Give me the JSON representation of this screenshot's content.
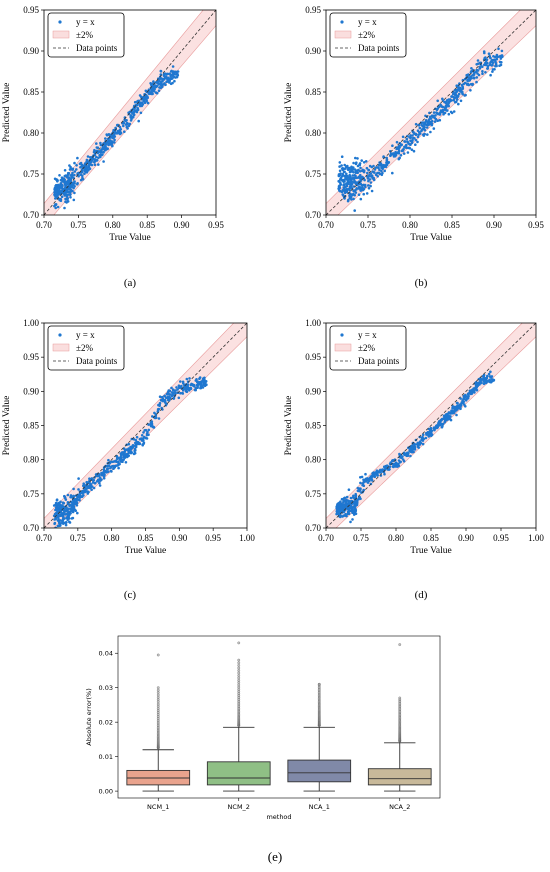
{
  "chart_data": [
    {
      "id": "a",
      "type": "scatter",
      "panel_label": "(a)",
      "xlabel": "True Value",
      "ylabel": "Predicted Value",
      "xlim": [
        0.7,
        0.95
      ],
      "ylim": [
        0.7,
        0.95
      ],
      "xticks": [
        "0.70",
        "0.75",
        "0.80",
        "0.85",
        "0.90",
        "0.95"
      ],
      "yticks": [
        "0.70",
        "0.75",
        "0.80",
        "0.85",
        "0.90",
        "0.95"
      ],
      "legend": {
        "position": "top-left",
        "entries": [
          "y = x",
          "±2%",
          "Data points"
        ]
      },
      "band_pct": 2,
      "colors": {
        "points": "#1f77d0",
        "band": "#f7c8c8",
        "band_edge": "#e89a9a",
        "identity": "#333333"
      },
      "trend": [
        [
          0.715,
          0.727
        ],
        [
          0.73,
          0.733
        ],
        [
          0.75,
          0.748
        ],
        [
          0.78,
          0.775
        ],
        [
          0.82,
          0.815
        ],
        [
          0.85,
          0.847
        ],
        [
          0.87,
          0.864
        ],
        [
          0.895,
          0.872
        ]
      ],
      "spread": 0.008
    },
    {
      "id": "b",
      "type": "scatter",
      "panel_label": "(b)",
      "xlabel": "True Value",
      "ylabel": "Predicted Value",
      "xlim": [
        0.7,
        0.95
      ],
      "ylim": [
        0.7,
        0.95
      ],
      "xticks": [
        "0.70",
        "0.75",
        "0.80",
        "0.85",
        "0.90",
        "0.95"
      ],
      "yticks": [
        "0.70",
        "0.75",
        "0.80",
        "0.85",
        "0.90",
        "0.95"
      ],
      "legend": {
        "position": "top-left",
        "entries": [
          "y = x",
          "±2%",
          "Data points"
        ]
      },
      "band_pct": 2,
      "colors": {
        "points": "#1f77d0",
        "band": "#f7c8c8",
        "band_edge": "#e89a9a",
        "identity": "#333333"
      },
      "trend": [
        [
          0.715,
          0.745
        ],
        [
          0.73,
          0.74
        ],
        [
          0.745,
          0.742
        ],
        [
          0.76,
          0.752
        ],
        [
          0.8,
          0.79
        ],
        [
          0.85,
          0.84
        ],
        [
          0.88,
          0.878
        ],
        [
          0.91,
          0.892
        ]
      ],
      "spread": 0.01
    },
    {
      "id": "c",
      "type": "scatter",
      "panel_label": "(c)",
      "xlabel": "True Value",
      "ylabel": "Predicted Value",
      "xlim": [
        0.7,
        1.0
      ],
      "ylim": [
        0.7,
        1.0
      ],
      "xticks": [
        "0.70",
        "0.75",
        "0.80",
        "0.85",
        "0.90",
        "0.95",
        "1.00"
      ],
      "yticks": [
        "0.70",
        "0.75",
        "0.80",
        "0.85",
        "0.90",
        "0.95",
        "1.00"
      ],
      "legend": {
        "position": "top-left",
        "entries": [
          "y = x",
          "±2%",
          "Data points"
        ]
      },
      "band_pct": 2,
      "colors": {
        "points": "#1f77d0",
        "band": "#f7c8c8",
        "band_edge": "#e89a9a",
        "identity": "#333333"
      },
      "trend": [
        [
          0.715,
          0.72
        ],
        [
          0.735,
          0.725
        ],
        [
          0.76,
          0.755
        ],
        [
          0.8,
          0.79
        ],
        [
          0.85,
          0.835
        ],
        [
          0.875,
          0.885
        ],
        [
          0.9,
          0.905
        ],
        [
          0.94,
          0.912
        ]
      ],
      "spread": 0.009
    },
    {
      "id": "d",
      "type": "scatter",
      "panel_label": "(d)",
      "xlabel": "True Value",
      "ylabel": "Predicted Value",
      "xlim": [
        0.7,
        1.0
      ],
      "ylim": [
        0.7,
        1.0
      ],
      "xticks": [
        "0.70",
        "0.75",
        "0.80",
        "0.85",
        "0.90",
        "0.95",
        "1.00"
      ],
      "yticks": [
        "0.70",
        "0.75",
        "0.80",
        "0.85",
        "0.90",
        "0.95",
        "1.00"
      ],
      "legend": {
        "position": "top-left",
        "entries": [
          "y = x",
          "±2%",
          "Data points"
        ]
      },
      "band_pct": 2,
      "colors": {
        "points": "#1f77d0",
        "band": "#f7c8c8",
        "band_edge": "#e89a9a",
        "identity": "#333333"
      },
      "trend": [
        [
          0.715,
          0.729
        ],
        [
          0.74,
          0.731
        ],
        [
          0.75,
          0.76
        ],
        [
          0.77,
          0.778
        ],
        [
          0.8,
          0.795
        ],
        [
          0.85,
          0.84
        ],
        [
          0.9,
          0.89
        ],
        [
          0.92,
          0.915
        ],
        [
          0.94,
          0.92
        ]
      ],
      "spread": 0.006
    },
    {
      "id": "e",
      "type": "box",
      "panel_label": "(e)",
      "xlabel": "method",
      "ylabel": "Absolute error(%)",
      "ylim": [
        -0.002,
        0.045
      ],
      "yticks": [
        "0.00",
        "0.01",
        "0.02",
        "0.03",
        "0.04"
      ],
      "categories": [
        "NCM_1",
        "NCM_2",
        "NCA_1",
        "NCA_2"
      ],
      "colors": [
        "#e9a38d",
        "#8fbf85",
        "#8089a8",
        "#c8b99a"
      ],
      "boxes": [
        {
          "min": 0.0,
          "q1": 0.0018,
          "median": 0.0038,
          "q3": 0.006,
          "max": 0.012,
          "outliers_from": 0.0125,
          "outliers_to": 0.03,
          "top": 0.0395
        },
        {
          "min": 0.0,
          "q1": 0.0018,
          "median": 0.0038,
          "q3": 0.0085,
          "max": 0.0185,
          "outliers_from": 0.019,
          "outliers_to": 0.038,
          "top": 0.043
        },
        {
          "min": 0.0,
          "q1": 0.0027,
          "median": 0.0053,
          "q3": 0.009,
          "max": 0.0185,
          "outliers_from": 0.019,
          "outliers_to": 0.031,
          "top": 0.031
        },
        {
          "min": 0.0,
          "q1": 0.0018,
          "median": 0.0036,
          "q3": 0.0065,
          "max": 0.014,
          "outliers_from": 0.0145,
          "outliers_to": 0.027,
          "top": 0.0425
        }
      ]
    }
  ]
}
